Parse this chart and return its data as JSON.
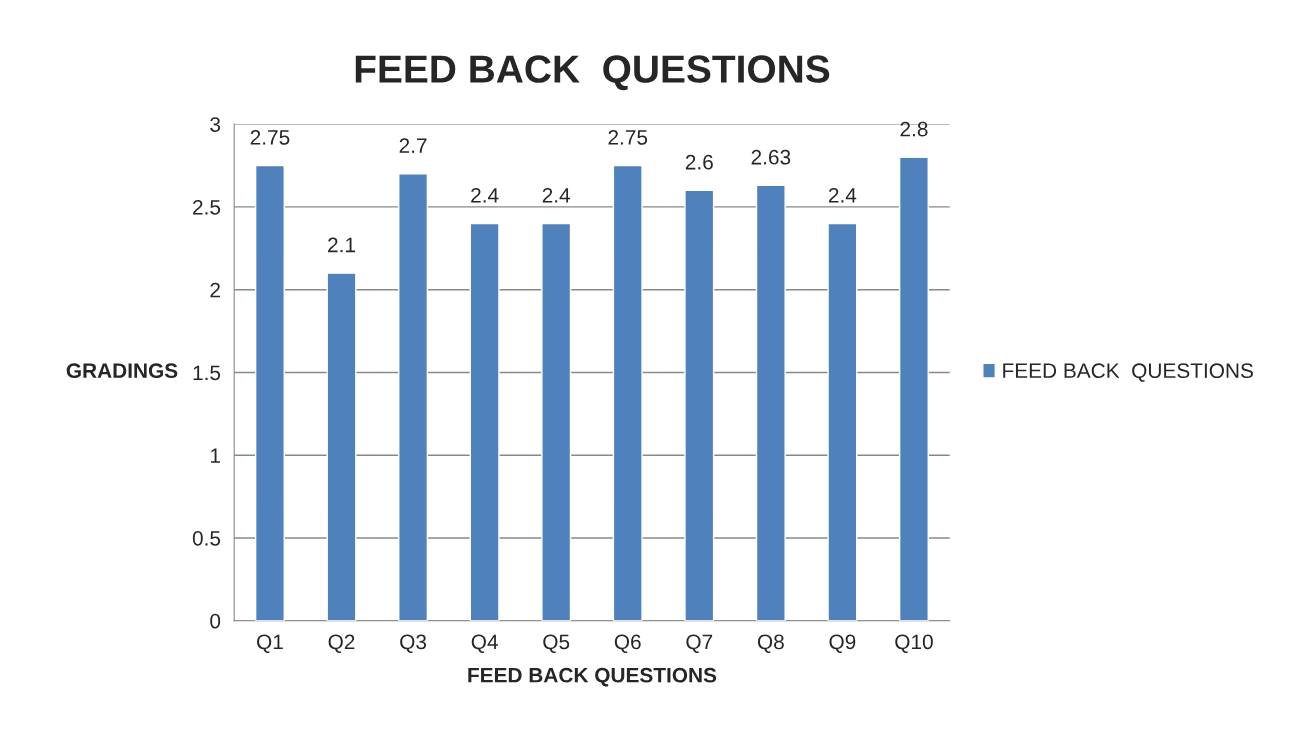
{
  "chart_data": {
    "type": "bar",
    "title": "FEED BACK  QUESTIONS",
    "xlabel": "FEED BACK QUESTIONS",
    "ylabel": "GRADINGS",
    "categories": [
      "Q1",
      "Q2",
      "Q3",
      "Q4",
      "Q5",
      "Q6",
      "Q7",
      "Q8",
      "Q9",
      "Q10"
    ],
    "series": [
      {
        "name": "FEED BACK  QUESTIONS",
        "color": "#4f81bd",
        "values": [
          2.75,
          2.1,
          2.7,
          2.4,
          2.4,
          2.75,
          2.6,
          2.63,
          2.4,
          2.8
        ]
      }
    ],
    "ylim": [
      0,
      3
    ],
    "yticks": [
      0,
      0.5,
      1,
      1.5,
      2,
      2.5,
      3
    ],
    "grid": "y",
    "legend": "right",
    "data_labels": true
  }
}
